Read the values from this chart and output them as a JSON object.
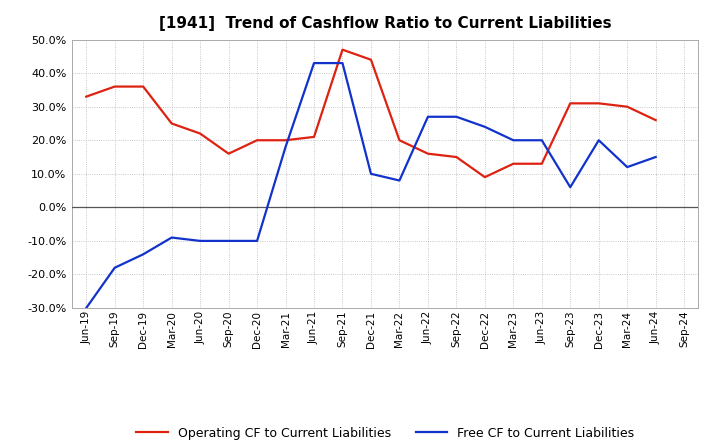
{
  "title": "[1941]  Trend of Cashflow Ratio to Current Liabilities",
  "x_labels": [
    "Jun-19",
    "Sep-19",
    "Dec-19",
    "Mar-20",
    "Jun-20",
    "Sep-20",
    "Dec-20",
    "Mar-21",
    "Jun-21",
    "Sep-21",
    "Dec-21",
    "Mar-22",
    "Jun-22",
    "Sep-22",
    "Dec-22",
    "Mar-23",
    "Jun-23",
    "Sep-23",
    "Dec-23",
    "Mar-24",
    "Jun-24",
    "Sep-24"
  ],
  "operating_cf": [
    0.33,
    0.36,
    0.36,
    0.25,
    0.22,
    0.16,
    0.2,
    0.2,
    0.21,
    0.47,
    0.44,
    0.2,
    0.16,
    0.15,
    0.09,
    0.13,
    0.13,
    0.31,
    0.31,
    0.3,
    0.26,
    null
  ],
  "free_cf": [
    -0.3,
    -0.18,
    -0.14,
    -0.09,
    -0.1,
    -0.1,
    -0.1,
    0.18,
    0.43,
    0.43,
    0.1,
    0.08,
    0.27,
    0.27,
    0.24,
    0.2,
    0.2,
    0.06,
    0.2,
    0.12,
    0.15,
    null
  ],
  "operating_color": "#dd2211",
  "free_color": "#1133cc",
  "ylim": [
    -0.3,
    0.5
  ],
  "yticks": [
    -0.3,
    -0.2,
    -0.1,
    0.0,
    0.1,
    0.2,
    0.3,
    0.4,
    0.5
  ],
  "legend_operating": "Operating CF to Current Liabilities",
  "legend_free": "Free CF to Current Liabilities",
  "bg_color": "#ffffff",
  "plot_bg_color": "#ffffff",
  "grid_color": "#999999",
  "zero_line_color": "#555555",
  "title_fontsize": 11,
  "line_width": 1.6,
  "tick_fontsize": 8,
  "legend_fontsize": 9
}
